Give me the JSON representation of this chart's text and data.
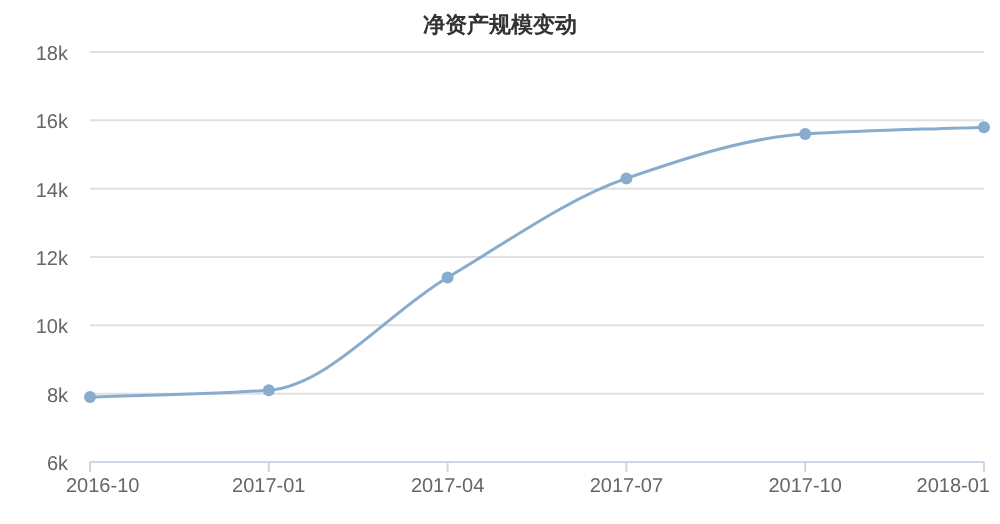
{
  "chart_data": {
    "type": "line",
    "title": "净资产规模变动",
    "categories": [
      "2016-10",
      "2017-01",
      "2017-04",
      "2017-07",
      "2017-10",
      "2018-01"
    ],
    "series": [
      {
        "color": "#87acce",
        "values": [
          7900,
          8100,
          11400,
          14300,
          15600,
          15800
        ]
      }
    ],
    "ylim": [
      6000,
      18000
    ],
    "yticks": [
      {
        "value": 6000,
        "label": "6k"
      },
      {
        "value": 8000,
        "label": "8k"
      },
      {
        "value": 10000,
        "label": "10k"
      },
      {
        "value": 12000,
        "label": "12k"
      },
      {
        "value": 14000,
        "label": "14k"
      },
      {
        "value": 16000,
        "label": "16k"
      },
      {
        "value": 18000,
        "label": "18k"
      }
    ],
    "grid": "y",
    "marker": "circle",
    "line_style": "solid"
  }
}
